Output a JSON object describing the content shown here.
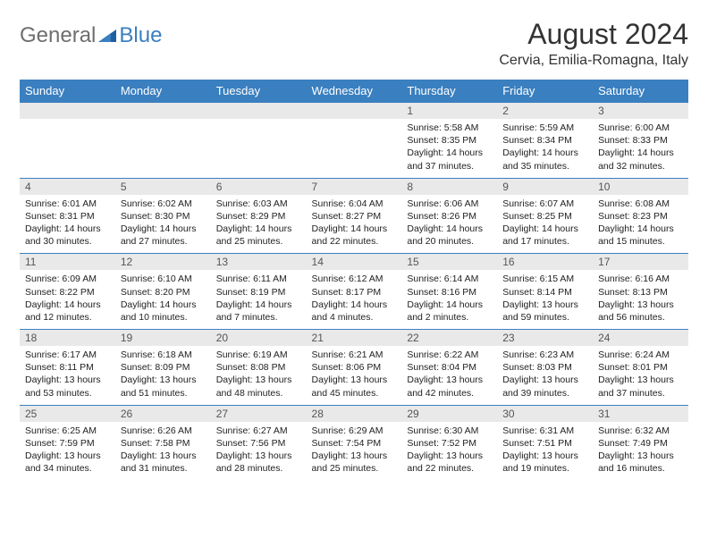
{
  "logo": {
    "general": "General",
    "blue": "Blue"
  },
  "title": "August 2024",
  "subtitle": "Cervia, Emilia-Romagna, Italy",
  "colors": {
    "header_bg": "#3a7fbf",
    "header_text": "#ffffff",
    "daynum_bg": "#e9e9e9",
    "border": "#3a7fbf",
    "logo_grey": "#6e6e6e",
    "logo_blue": "#3a7fbf"
  },
  "day_headers": [
    "Sunday",
    "Monday",
    "Tuesday",
    "Wednesday",
    "Thursday",
    "Friday",
    "Saturday"
  ],
  "weeks": [
    [
      {
        "num": "",
        "lines": []
      },
      {
        "num": "",
        "lines": []
      },
      {
        "num": "",
        "lines": []
      },
      {
        "num": "",
        "lines": []
      },
      {
        "num": "1",
        "lines": [
          "Sunrise: 5:58 AM",
          "Sunset: 8:35 PM",
          "Daylight: 14 hours and 37 minutes."
        ]
      },
      {
        "num": "2",
        "lines": [
          "Sunrise: 5:59 AM",
          "Sunset: 8:34 PM",
          "Daylight: 14 hours and 35 minutes."
        ]
      },
      {
        "num": "3",
        "lines": [
          "Sunrise: 6:00 AM",
          "Sunset: 8:33 PM",
          "Daylight: 14 hours and 32 minutes."
        ]
      }
    ],
    [
      {
        "num": "4",
        "lines": [
          "Sunrise: 6:01 AM",
          "Sunset: 8:31 PM",
          "Daylight: 14 hours and 30 minutes."
        ]
      },
      {
        "num": "5",
        "lines": [
          "Sunrise: 6:02 AM",
          "Sunset: 8:30 PM",
          "Daylight: 14 hours and 27 minutes."
        ]
      },
      {
        "num": "6",
        "lines": [
          "Sunrise: 6:03 AM",
          "Sunset: 8:29 PM",
          "Daylight: 14 hours and 25 minutes."
        ]
      },
      {
        "num": "7",
        "lines": [
          "Sunrise: 6:04 AM",
          "Sunset: 8:27 PM",
          "Daylight: 14 hours and 22 minutes."
        ]
      },
      {
        "num": "8",
        "lines": [
          "Sunrise: 6:06 AM",
          "Sunset: 8:26 PM",
          "Daylight: 14 hours and 20 minutes."
        ]
      },
      {
        "num": "9",
        "lines": [
          "Sunrise: 6:07 AM",
          "Sunset: 8:25 PM",
          "Daylight: 14 hours and 17 minutes."
        ]
      },
      {
        "num": "10",
        "lines": [
          "Sunrise: 6:08 AM",
          "Sunset: 8:23 PM",
          "Daylight: 14 hours and 15 minutes."
        ]
      }
    ],
    [
      {
        "num": "11",
        "lines": [
          "Sunrise: 6:09 AM",
          "Sunset: 8:22 PM",
          "Daylight: 14 hours and 12 minutes."
        ]
      },
      {
        "num": "12",
        "lines": [
          "Sunrise: 6:10 AM",
          "Sunset: 8:20 PM",
          "Daylight: 14 hours and 10 minutes."
        ]
      },
      {
        "num": "13",
        "lines": [
          "Sunrise: 6:11 AM",
          "Sunset: 8:19 PM",
          "Daylight: 14 hours and 7 minutes."
        ]
      },
      {
        "num": "14",
        "lines": [
          "Sunrise: 6:12 AM",
          "Sunset: 8:17 PM",
          "Daylight: 14 hours and 4 minutes."
        ]
      },
      {
        "num": "15",
        "lines": [
          "Sunrise: 6:14 AM",
          "Sunset: 8:16 PM",
          "Daylight: 14 hours and 2 minutes."
        ]
      },
      {
        "num": "16",
        "lines": [
          "Sunrise: 6:15 AM",
          "Sunset: 8:14 PM",
          "Daylight: 13 hours and 59 minutes."
        ]
      },
      {
        "num": "17",
        "lines": [
          "Sunrise: 6:16 AM",
          "Sunset: 8:13 PM",
          "Daylight: 13 hours and 56 minutes."
        ]
      }
    ],
    [
      {
        "num": "18",
        "lines": [
          "Sunrise: 6:17 AM",
          "Sunset: 8:11 PM",
          "Daylight: 13 hours and 53 minutes."
        ]
      },
      {
        "num": "19",
        "lines": [
          "Sunrise: 6:18 AM",
          "Sunset: 8:09 PM",
          "Daylight: 13 hours and 51 minutes."
        ]
      },
      {
        "num": "20",
        "lines": [
          "Sunrise: 6:19 AM",
          "Sunset: 8:08 PM",
          "Daylight: 13 hours and 48 minutes."
        ]
      },
      {
        "num": "21",
        "lines": [
          "Sunrise: 6:21 AM",
          "Sunset: 8:06 PM",
          "Daylight: 13 hours and 45 minutes."
        ]
      },
      {
        "num": "22",
        "lines": [
          "Sunrise: 6:22 AM",
          "Sunset: 8:04 PM",
          "Daylight: 13 hours and 42 minutes."
        ]
      },
      {
        "num": "23",
        "lines": [
          "Sunrise: 6:23 AM",
          "Sunset: 8:03 PM",
          "Daylight: 13 hours and 39 minutes."
        ]
      },
      {
        "num": "24",
        "lines": [
          "Sunrise: 6:24 AM",
          "Sunset: 8:01 PM",
          "Daylight: 13 hours and 37 minutes."
        ]
      }
    ],
    [
      {
        "num": "25",
        "lines": [
          "Sunrise: 6:25 AM",
          "Sunset: 7:59 PM",
          "Daylight: 13 hours and 34 minutes."
        ]
      },
      {
        "num": "26",
        "lines": [
          "Sunrise: 6:26 AM",
          "Sunset: 7:58 PM",
          "Daylight: 13 hours and 31 minutes."
        ]
      },
      {
        "num": "27",
        "lines": [
          "Sunrise: 6:27 AM",
          "Sunset: 7:56 PM",
          "Daylight: 13 hours and 28 minutes."
        ]
      },
      {
        "num": "28",
        "lines": [
          "Sunrise: 6:29 AM",
          "Sunset: 7:54 PM",
          "Daylight: 13 hours and 25 minutes."
        ]
      },
      {
        "num": "29",
        "lines": [
          "Sunrise: 6:30 AM",
          "Sunset: 7:52 PM",
          "Daylight: 13 hours and 22 minutes."
        ]
      },
      {
        "num": "30",
        "lines": [
          "Sunrise: 6:31 AM",
          "Sunset: 7:51 PM",
          "Daylight: 13 hours and 19 minutes."
        ]
      },
      {
        "num": "31",
        "lines": [
          "Sunrise: 6:32 AM",
          "Sunset: 7:49 PM",
          "Daylight: 13 hours and 16 minutes."
        ]
      }
    ]
  ]
}
